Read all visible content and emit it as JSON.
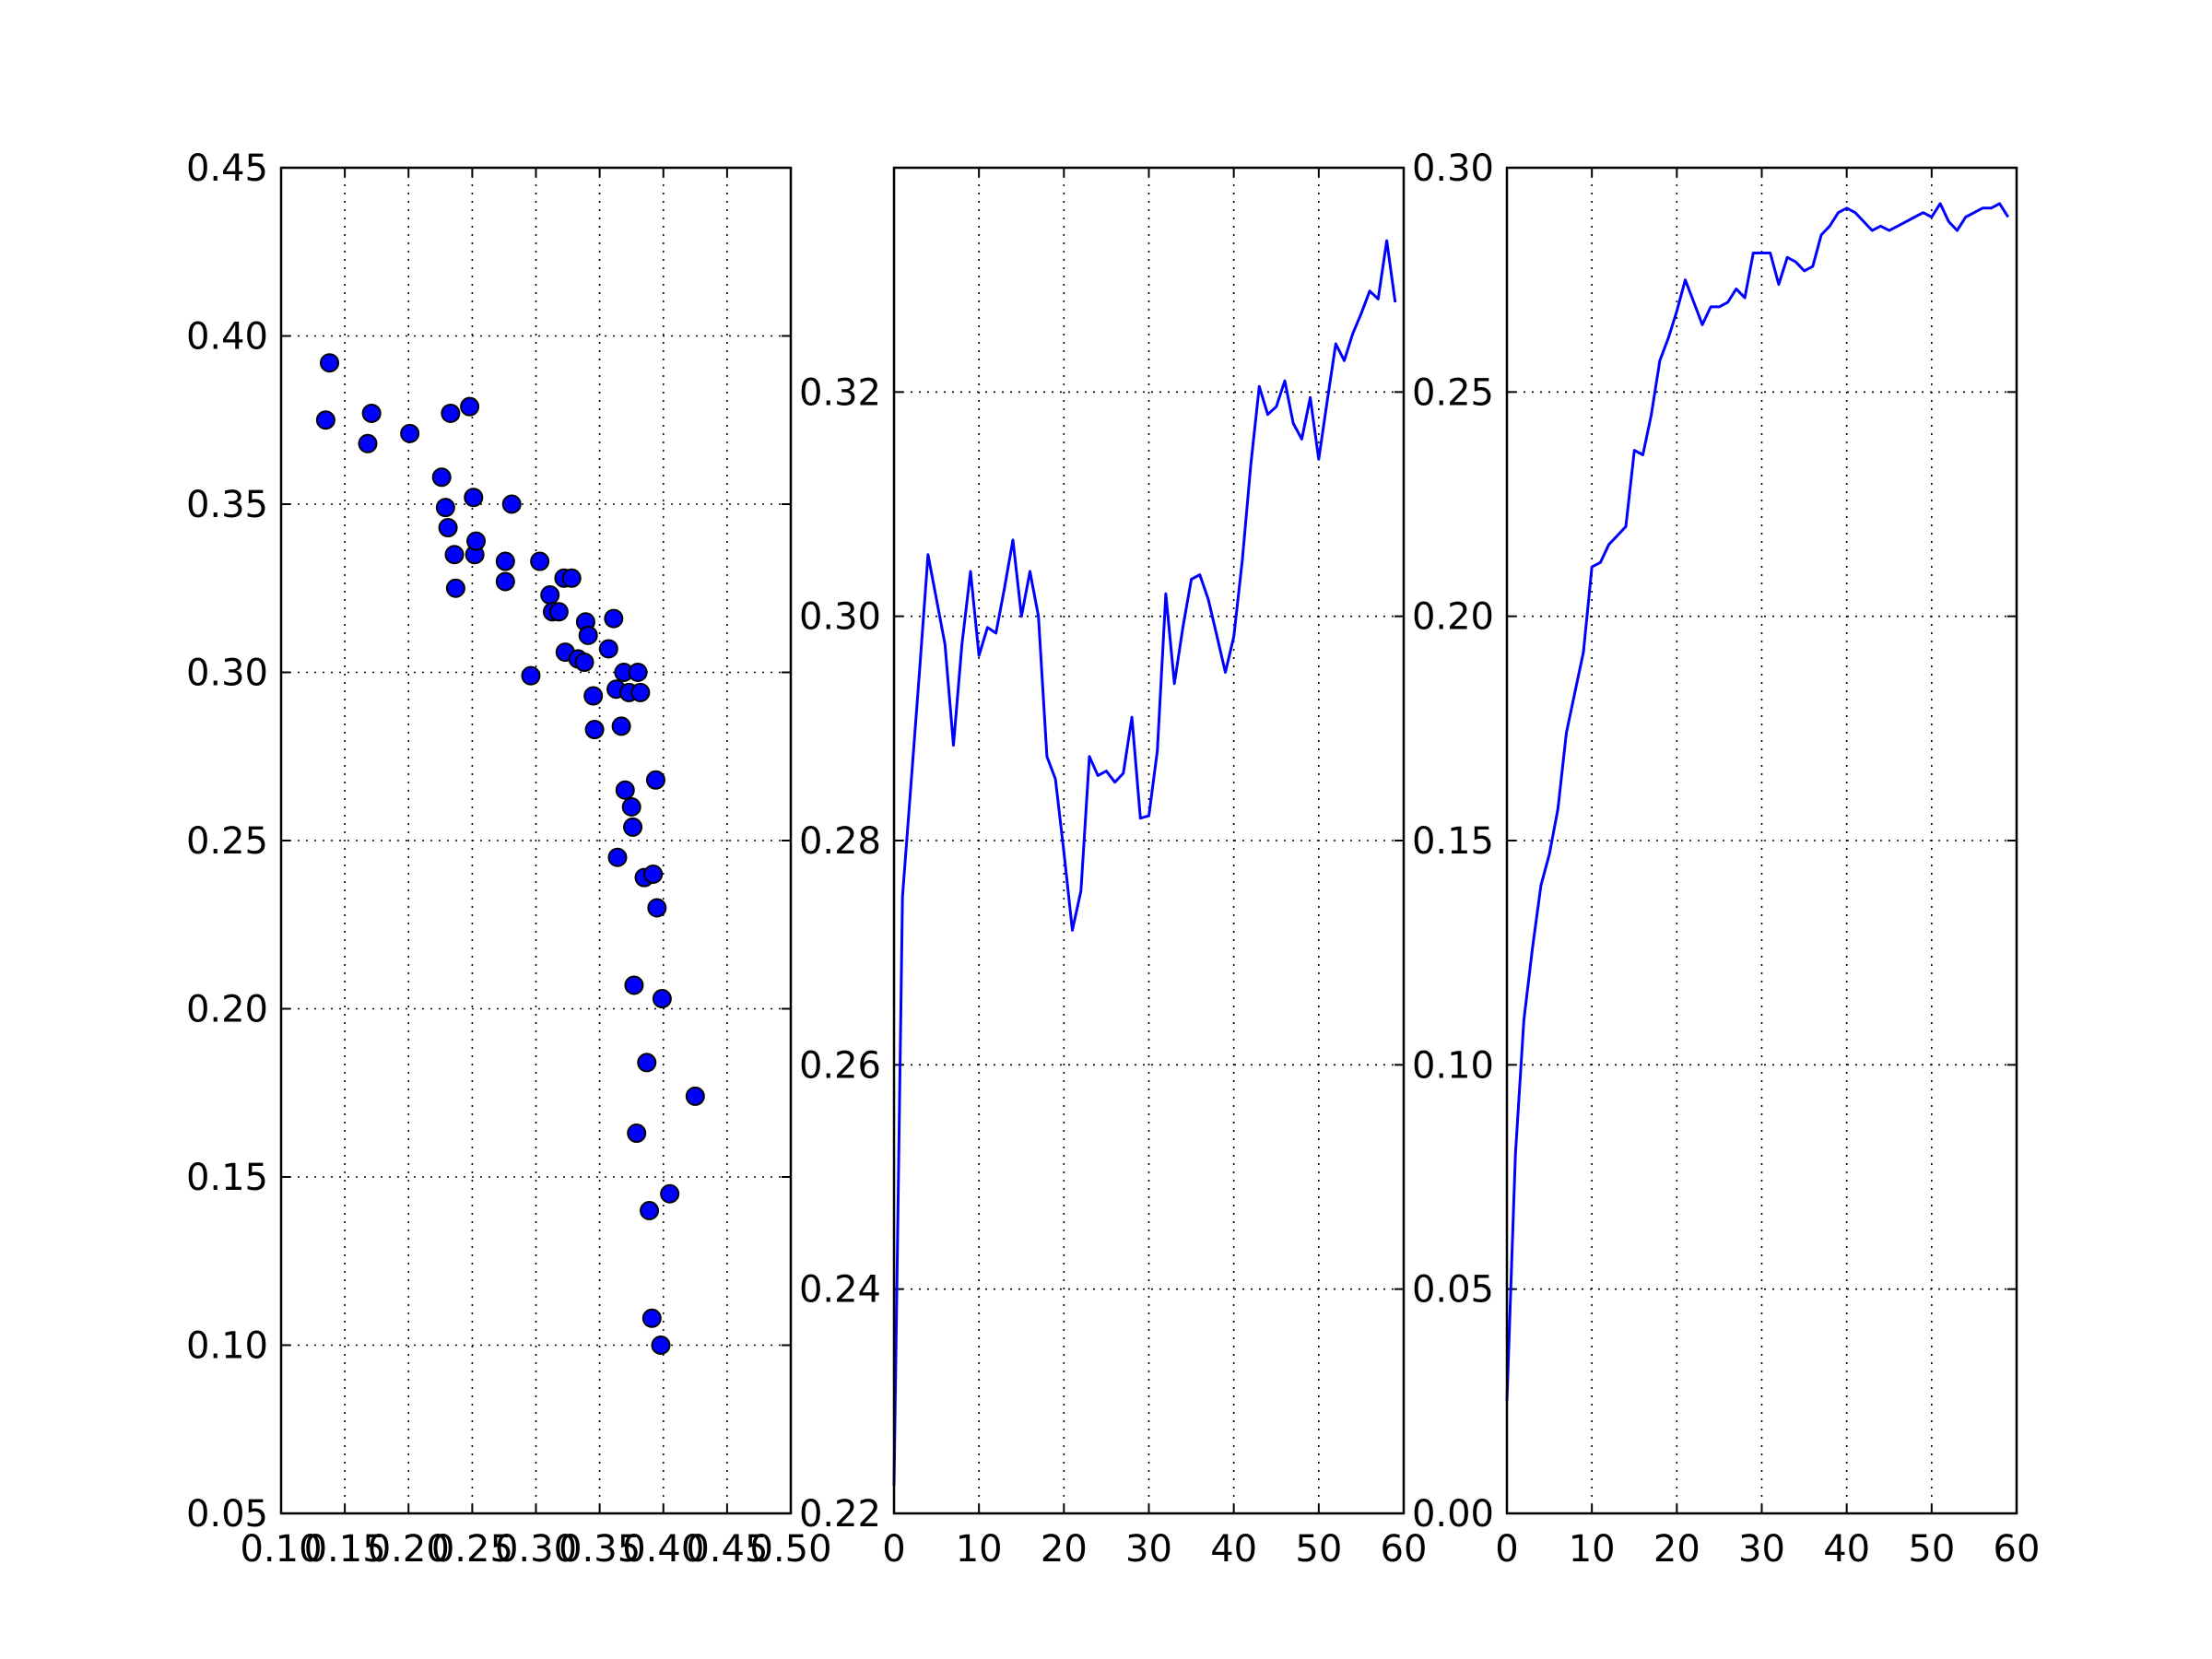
{
  "chart_data": [
    {
      "type": "scatter",
      "title": "",
      "xlabel": "",
      "ylabel": "",
      "xlim": [
        0.1,
        0.5
      ],
      "ylim": [
        0.05,
        0.45
      ],
      "xticks": [
        "0.10",
        "0.15",
        "0.20",
        "0.25",
        "0.30",
        "0.35",
        "0.40",
        "0.45",
        "0.50"
      ],
      "yticks": [
        "0.05",
        "0.10",
        "0.15",
        "0.20",
        "0.25",
        "0.30",
        "0.35",
        "0.40",
        "0.45"
      ],
      "grid": true,
      "colors": {
        "marker_fill": "#0000ff",
        "marker_edge": "#000000"
      },
      "points": [
        [
          0.135,
          0.375
        ],
        [
          0.138,
          0.392
        ],
        [
          0.168,
          0.368
        ],
        [
          0.171,
          0.377
        ],
        [
          0.201,
          0.371
        ],
        [
          0.226,
          0.358
        ],
        [
          0.229,
          0.349
        ],
        [
          0.231,
          0.343
        ],
        [
          0.233,
          0.377
        ],
        [
          0.236,
          0.335
        ],
        [
          0.237,
          0.325
        ],
        [
          0.248,
          0.379
        ],
        [
          0.251,
          0.352
        ],
        [
          0.252,
          0.335
        ],
        [
          0.253,
          0.339
        ],
        [
          0.276,
          0.333
        ],
        [
          0.276,
          0.327
        ],
        [
          0.281,
          0.35
        ],
        [
          0.296,
          0.299
        ],
        [
          0.303,
          0.333
        ],
        [
          0.311,
          0.323
        ],
        [
          0.313,
          0.318
        ],
        [
          0.318,
          0.318
        ],
        [
          0.322,
          0.328
        ],
        [
          0.323,
          0.306
        ],
        [
          0.328,
          0.328
        ],
        [
          0.333,
          0.304
        ],
        [
          0.338,
          0.303
        ],
        [
          0.339,
          0.315
        ],
        [
          0.341,
          0.311
        ],
        [
          0.345,
          0.293
        ],
        [
          0.346,
          0.283
        ],
        [
          0.357,
          0.307
        ],
        [
          0.361,
          0.316
        ],
        [
          0.363,
          0.295
        ],
        [
          0.367,
          0.284
        ],
        [
          0.369,
          0.3
        ],
        [
          0.37,
          0.265
        ],
        [
          0.373,
          0.294
        ],
        [
          0.375,
          0.26
        ],
        [
          0.376,
          0.254
        ],
        [
          0.377,
          0.207
        ],
        [
          0.379,
          0.163
        ],
        [
          0.38,
          0.3
        ],
        [
          0.382,
          0.294
        ],
        [
          0.364,
          0.245
        ],
        [
          0.385,
          0.239
        ],
        [
          0.387,
          0.184
        ],
        [
          0.389,
          0.14
        ],
        [
          0.391,
          0.108
        ],
        [
          0.392,
          0.24
        ],
        [
          0.394,
          0.268
        ],
        [
          0.395,
          0.23
        ],
        [
          0.398,
          0.1
        ],
        [
          0.399,
          0.203
        ],
        [
          0.405,
          0.145
        ],
        [
          0.425,
          0.174
        ]
      ]
    },
    {
      "type": "line",
      "title": "",
      "xlabel": "",
      "ylabel": "",
      "xlim": [
        0,
        60
      ],
      "ylim": [
        0.22,
        0.34
      ],
      "xticks": [
        "0",
        "10",
        "20",
        "30",
        "40",
        "50",
        "60"
      ],
      "yticks": [
        "0.22",
        "0.24",
        "0.26",
        "0.28",
        "0.30",
        "0.32"
      ],
      "grid": true,
      "colors": {
        "line": "#0000ff"
      },
      "x": [
        0,
        1,
        2,
        3,
        4,
        5,
        6,
        7,
        8,
        9,
        10,
        11,
        12,
        13,
        14,
        15,
        16,
        17,
        18,
        19,
        20,
        21,
        22,
        23,
        24,
        25,
        26,
        27,
        28,
        29,
        30,
        31,
        32,
        33,
        34,
        35,
        36,
        37,
        38,
        39,
        40,
        41,
        42,
        43,
        44,
        45,
        46,
        47,
        48,
        49,
        50,
        51,
        52,
        53,
        54,
        55,
        56,
        57,
        58,
        59
      ],
      "y": [
        0.2225,
        0.275,
        0.285,
        0.295,
        0.3055,
        0.3015,
        0.2975,
        0.2885,
        0.2975,
        0.304,
        0.2965,
        0.299,
        0.2985,
        0.3025,
        0.3068,
        0.3,
        0.304,
        0.3,
        0.2875,
        0.2855,
        0.279,
        0.272,
        0.2755,
        0.2875,
        0.2858,
        0.2862,
        0.2852,
        0.286,
        0.291,
        0.282,
        0.2822,
        0.288,
        0.302,
        0.294,
        0.299,
        0.3033,
        0.3037,
        0.3015,
        0.2983,
        0.295,
        0.2982,
        0.305,
        0.3135,
        0.3205,
        0.318,
        0.3187,
        0.321,
        0.3172,
        0.3158,
        0.3195,
        0.314,
        0.3192,
        0.3243,
        0.3228,
        0.3252,
        0.327,
        0.329,
        0.3283,
        0.3335,
        0.328
      ]
    },
    {
      "type": "line",
      "title": "",
      "xlabel": "",
      "ylabel": "",
      "xlim": [
        0,
        60
      ],
      "ylim": [
        0.0,
        0.3
      ],
      "xticks": [
        "0",
        "10",
        "20",
        "30",
        "40",
        "50",
        "60"
      ],
      "yticks": [
        "0.00",
        "0.05",
        "0.10",
        "0.15",
        "0.20",
        "0.25",
        "0.30"
      ],
      "grid": true,
      "colors": {
        "line": "#0000ff"
      },
      "x": [
        0,
        1,
        2,
        3,
        4,
        5,
        6,
        7,
        8,
        9,
        10,
        11,
        12,
        13,
        14,
        15,
        16,
        17,
        18,
        19,
        20,
        21,
        22,
        23,
        24,
        25,
        26,
        27,
        28,
        29,
        30,
        31,
        32,
        33,
        34,
        35,
        36,
        37,
        38,
        39,
        40,
        41,
        42,
        43,
        44,
        45,
        46,
        47,
        48,
        49,
        50,
        51,
        52,
        53,
        54,
        55,
        56,
        57,
        58,
        59
      ],
      "y": [
        0.025,
        0.08,
        0.11,
        0.126,
        0.14,
        0.147,
        0.157,
        0.174,
        0.183,
        0.192,
        0.211,
        0.212,
        0.216,
        0.218,
        0.22,
        0.237,
        0.236,
        0.245,
        0.257,
        0.262,
        0.268,
        0.275,
        0.27,
        0.265,
        0.269,
        0.269,
        0.27,
        0.273,
        0.271,
        0.281,
        0.281,
        0.281,
        0.274,
        0.28,
        0.279,
        0.277,
        0.278,
        0.285,
        0.287,
        0.29,
        0.291,
        0.29,
        0.288,
        0.286,
        0.287,
        0.286,
        0.287,
        0.288,
        0.289,
        0.29,
        0.289,
        0.292,
        0.288,
        0.286,
        0.289,
        0.29,
        0.291,
        0.291,
        0.292,
        0.289
      ]
    }
  ]
}
